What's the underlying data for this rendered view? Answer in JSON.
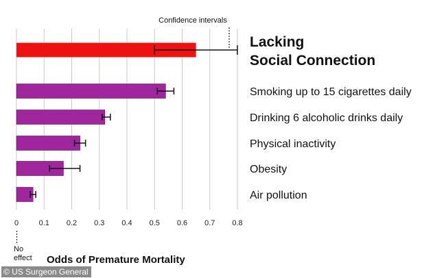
{
  "chart_data": {
    "type": "bar",
    "orientation": "horizontal",
    "xlabel": "Odds of Premature Mortality",
    "xlim": [
      0,
      0.8
    ],
    "xticks": [
      0,
      0.1,
      0.2,
      0.3,
      0.4,
      0.5,
      0.6,
      0.7,
      0.8
    ],
    "xtick_labels": [
      "0",
      "0.1",
      "0.2",
      "0.3",
      "0.4",
      "0.5",
      "0.6",
      "0.7",
      "0.8"
    ],
    "grid": true,
    "categories": [
      "Lacking Social Connection",
      "Smoking up to 15 cigarettes daily",
      "Drinking 6 alcoholic drinks daily",
      "Physical inactivity",
      "Obesity",
      "Air pollution"
    ],
    "highlight_label_lines": [
      "Lacking",
      "Social Connection"
    ],
    "values": [
      0.65,
      0.54,
      0.32,
      0.23,
      0.17,
      0.06
    ],
    "ci_low": [
      0.5,
      0.51,
      0.31,
      0.21,
      0.12,
      0.05
    ],
    "ci_high": [
      0.8,
      0.57,
      0.34,
      0.25,
      0.23,
      0.07
    ],
    "colors": [
      "#ee1111",
      "#a0269e",
      "#a0269e",
      "#a0269e",
      "#a0269e",
      "#a0269e"
    ],
    "annotations": {
      "confidence_intervals": "Confidence intervals",
      "no_effect": [
        "No",
        "effect"
      ]
    }
  },
  "credit": "© US Surgeon General"
}
